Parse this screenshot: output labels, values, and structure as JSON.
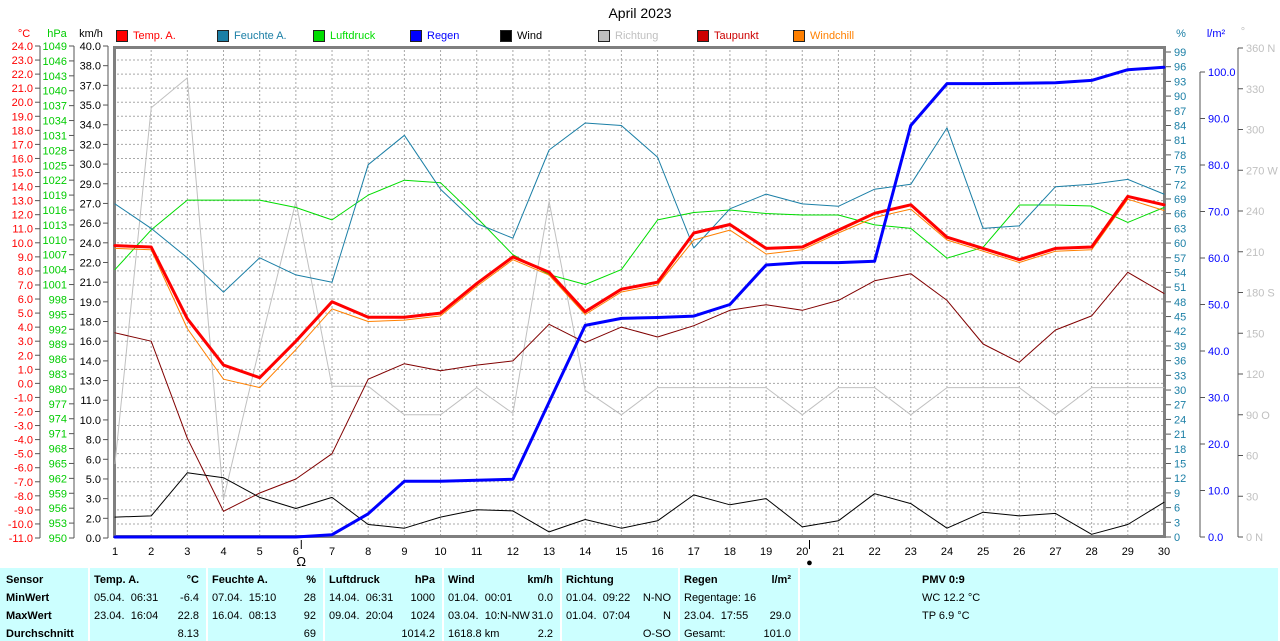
{
  "chart_data": {
    "type": "line",
    "title": "April 2023",
    "xlabel": "",
    "x": [
      1,
      2,
      3,
      4,
      5,
      6,
      7,
      8,
      9,
      10,
      11,
      12,
      13,
      14,
      15,
      16,
      17,
      18,
      19,
      20,
      21,
      22,
      23,
      24,
      25,
      26,
      27,
      28,
      29,
      30
    ],
    "series": [
      {
        "id": "richtung",
        "name": "Richtung",
        "axis": "dir",
        "color": "#C0C0C0",
        "width": 1,
        "values": [
          54,
          316,
          338,
          28,
          140,
          247,
          111,
          111,
          90,
          90,
          110,
          91,
          247,
          108,
          90,
          110,
          110,
          110,
          110,
          90,
          110,
          110,
          90,
          110,
          110,
          110,
          90,
          110,
          110,
          110
        ]
      },
      {
        "id": "luftdruck",
        "name": "Luftdruck",
        "axis": "hpa",
        "color": "#00DD00",
        "width": 1,
        "values": [
          1004,
          1012,
          1018,
          1018,
          1018,
          1016.5,
          1014,
          1019,
          1022,
          1021.5,
          1014.5,
          1007,
          1003,
          1001,
          1004,
          1014,
          1015.5,
          1016,
          1015.3,
          1015,
          1015,
          1013,
          1012.3,
          1006.3,
          1008.5,
          1017,
          1017,
          1016.8,
          1013.5,
          1016.5
        ]
      },
      {
        "id": "feuchte-a",
        "name": "Feuchte A.",
        "axis": "pct",
        "color": "#1B7FA6",
        "width": 1,
        "values": [
          68,
          63,
          57,
          50,
          57,
          53.5,
          52,
          76,
          82,
          71,
          64,
          61,
          79,
          84.5,
          84,
          77.5,
          59,
          67,
          70,
          68,
          67.5,
          71,
          72,
          83.5,
          63,
          63.5,
          71.5,
          72,
          73,
          70
        ]
      },
      {
        "id": "taupunkt",
        "name": "Taupunkt",
        "axis": "temp",
        "color": "#800000",
        "width": 1,
        "values": [
          3.6,
          3.0,
          -3.9,
          -9.1,
          -7.8,
          -6.8,
          -5.0,
          0.3,
          1.4,
          0.9,
          1.3,
          1.6,
          4.2,
          2.9,
          4.0,
          3.3,
          4.1,
          5.2,
          5.6,
          5.2,
          5.9,
          7.3,
          7.8,
          5.9,
          2.8,
          1.5,
          3.8,
          4.8,
          7.9,
          6.4
        ]
      },
      {
        "id": "windchill",
        "name": "Windchill",
        "axis": "temp",
        "color": "#FF8000",
        "width": 1,
        "values": [
          9.6,
          9.5,
          3.9,
          0.3,
          -0.3,
          2.4,
          5.3,
          4.4,
          4.5,
          4.8,
          6.9,
          8.8,
          7.7,
          4.9,
          6.5,
          7.0,
          10.2,
          10.9,
          9.2,
          9.5,
          10.7,
          11.8,
          12.4,
          10.2,
          9.4,
          8.6,
          9.4,
          9.5,
          13.1,
          12.3
        ]
      },
      {
        "id": "wind",
        "name": "Wind",
        "axis": "kmh",
        "color": "#000000",
        "width": 1,
        "values": [
          1.7,
          1.8,
          5.3,
          4.9,
          3.3,
          2.4,
          3.3,
          1.1,
          0.8,
          1.7,
          2.3,
          2.2,
          0.5,
          1.5,
          0.8,
          1.4,
          3.5,
          2.7,
          3.2,
          0.9,
          1.4,
          3.6,
          2.8,
          0.8,
          2.1,
          1.8,
          2.0,
          0.3,
          1.1,
          2.9
        ]
      },
      {
        "id": "temp-a",
        "name": "Temp. A.",
        "axis": "temp",
        "color": "#FF0000",
        "width": 3,
        "values": [
          9.8,
          9.7,
          4.6,
          1.3,
          0.4,
          3.0,
          5.8,
          4.7,
          4.7,
          5.0,
          7.1,
          9.0,
          7.9,
          5.1,
          6.7,
          7.2,
          10.7,
          11.3,
          9.6,
          9.7,
          10.9,
          12.1,
          12.7,
          10.4,
          9.6,
          8.8,
          9.6,
          9.7,
          13.3,
          12.7
        ]
      },
      {
        "id": "regen",
        "name": "Regen",
        "axis": "lm2",
        "color": "#0000FF",
        "width": 3,
        "values": [
          0,
          0,
          0,
          0,
          0,
          0,
          0.5,
          5,
          12,
          12,
          12.2,
          12.4,
          29,
          45.5,
          47,
          47.2,
          47.5,
          50,
          58.5,
          59,
          59,
          59.3,
          88.5,
          97.5,
          97.5,
          97.6,
          97.7,
          98.2,
          100.5,
          101
        ]
      }
    ]
  },
  "legend": {
    "items": [
      {
        "id": "temp-a",
        "label": "Temp. A.",
        "color": "#FF0000"
      },
      {
        "id": "feuchte-a",
        "label": "Feuchte A.",
        "color": "#1B7FA6"
      },
      {
        "id": "luftdruck",
        "label": "Luftdruck",
        "color": "#00DD00"
      },
      {
        "id": "regen",
        "label": "Regen",
        "color": "#0000FF"
      },
      {
        "id": "wind",
        "label": "Wind",
        "color": "#000000"
      },
      {
        "id": "richtung",
        "label": "Richtung",
        "color": "#C0C0C0"
      },
      {
        "id": "taupunkt",
        "label": "Taupunkt",
        "color": "#CC0000"
      },
      {
        "id": "windchill",
        "label": "Windchill",
        "color": "#FF8000"
      }
    ]
  },
  "axes": {
    "temp": {
      "header": "°C",
      "color": "#FF0000",
      "min": -11,
      "max": 24,
      "labels": [
        "24.0",
        "23.0",
        "22.0",
        "21.0",
        "20.0",
        "19.0",
        "18.0",
        "17.0",
        "16.0",
        "15.0",
        "14.0",
        "13.0",
        "12.0",
        "11.0",
        "10.0",
        "9.0",
        "8.0",
        "7.0",
        "6.0",
        "5.0",
        "4.0",
        "3.0",
        "2.0",
        "1.0",
        "0.0",
        "-1.0",
        "-2.0",
        "-3.0",
        "-4.0",
        "-5.0",
        "-6.0",
        "-7.0",
        "-8.0",
        "-9.0",
        "-10.0",
        "-11.0"
      ]
    },
    "hpa": {
      "header": "hPa",
      "color": "#00CC00",
      "min": 950,
      "max": 1049,
      "labels": [
        "1049",
        "1046",
        "1043",
        "1040",
        "1037",
        "1034",
        "1031",
        "1028",
        "1025",
        "1022",
        "1019",
        "1016",
        "1013",
        "1010",
        "1007",
        "1004",
        "1001",
        "998",
        "995",
        "992",
        "989",
        "986",
        "983",
        "980",
        "977",
        "974",
        "971",
        "968",
        "965",
        "962",
        "959",
        "956",
        "953",
        "950"
      ]
    },
    "kmh": {
      "header": "km/h",
      "color": "#000000",
      "min": 0,
      "max": 40,
      "labels": [
        "40.0",
        "38.0",
        "37.0",
        "35.0",
        "34.0",
        "32.0",
        "30.0",
        "29.0",
        "27.0",
        "26.0",
        "24.0",
        "22.0",
        "21.0",
        "19.0",
        "18.0",
        "16.0",
        "14.0",
        "13.0",
        "11.0",
        "10.0",
        "8.0",
        "6.0",
        "5.0",
        "3.0",
        "2.0",
        "0.0"
      ]
    },
    "pct": {
      "header": "%",
      "color": "#1B7FA6",
      "min": 0,
      "max": 99,
      "labels": [
        "99",
        "96",
        "93",
        "90",
        "87",
        "84",
        "81",
        "78",
        "75",
        "72",
        "69",
        "66",
        "63",
        "60",
        "57",
        "54",
        "51",
        "48",
        "45",
        "42",
        "39",
        "36",
        "33",
        "30",
        "27",
        "24",
        "21",
        "18",
        "15",
        "12",
        "9",
        "6",
        "3",
        "0"
      ]
    },
    "lm2": {
      "header": "l/m²",
      "color": "#0000FF",
      "min": 0,
      "max": 100,
      "labels": [
        "100.0",
        "90.0",
        "80.0",
        "70.0",
        "60.0",
        "50.0",
        "40.0",
        "30.0",
        "20.0",
        "10.0",
        "0.0"
      ]
    },
    "dir": {
      "header": "°",
      "color": "#C0C0C0",
      "min": 0,
      "max": 360,
      "labels": [
        "360 N",
        "330",
        "300",
        "270 W",
        "240",
        "210",
        "180 S",
        "150",
        "120",
        "90 O",
        "60",
        "30",
        "0 N"
      ]
    }
  },
  "x_axis": {
    "days": [
      "1",
      "2",
      "3",
      "4",
      "5",
      "6",
      "7",
      "8",
      "9",
      "10",
      "11",
      "12",
      "13",
      "14",
      "15",
      "16",
      "17",
      "18",
      "19",
      "20",
      "21",
      "22",
      "23",
      "24",
      "25",
      "26",
      "27",
      "28",
      "29",
      "30"
    ],
    "moon_markers": [
      {
        "symbol": "Ω",
        "name": "full-moon-marker",
        "day": 6.15
      },
      {
        "symbol": "●",
        "name": "new-moon-marker",
        "day": 20.2
      }
    ]
  },
  "summary_table": {
    "columns": [
      {
        "id": "sensor",
        "cells": [
          {
            "l": "Sensor",
            "r": ""
          },
          {
            "l": "MinWert",
            "r": ""
          },
          {
            "l": "MaxWert",
            "r": ""
          },
          {
            "l": "Durchschnitt",
            "r": ""
          }
        ]
      },
      {
        "id": "temp",
        "cells": [
          {
            "l": "Temp. A.",
            "r": "°C"
          },
          {
            "l": "05.04.  06:31",
            "r": "-6.4"
          },
          {
            "l": "23.04.  16:04",
            "r": "22.8"
          },
          {
            "l": "",
            "r": "8.13"
          }
        ]
      },
      {
        "id": "feuchte",
        "cells": [
          {
            "l": "Feuchte A.",
            "r": "%"
          },
          {
            "l": "07.04.  15:10",
            "r": "28"
          },
          {
            "l": "16.04.  08:13",
            "r": "92"
          },
          {
            "l": "",
            "r": "69"
          }
        ]
      },
      {
        "id": "luftdruck",
        "cells": [
          {
            "l": "Luftdruck",
            "r": "hPa"
          },
          {
            "l": "14.04.  06:31",
            "r": "1000"
          },
          {
            "l": "09.04.  20:04",
            "r": "1024"
          },
          {
            "l": "",
            "r": "1014.2"
          }
        ]
      },
      {
        "id": "wind",
        "cells": [
          {
            "l": "Wind",
            "r": "km/h"
          },
          {
            "l": "01.04.  00:01",
            "r": "0.0"
          },
          {
            "l": "03.04.  10:N-NW",
            "r": "31.0"
          },
          {
            "l": "1618.8 km",
            "r": "2.2"
          }
        ]
      },
      {
        "id": "richtung",
        "cells": [
          {
            "l": "Richtung",
            "r": ""
          },
          {
            "l": "01.04.  09:22",
            "r": "N-NO"
          },
          {
            "l": "01.04.  07:04",
            "r": "N"
          },
          {
            "l": "",
            "r": "O-SO"
          }
        ]
      },
      {
        "id": "regen",
        "cells": [
          {
            "l": "Regen",
            "r": "l/m²"
          },
          {
            "l": "Regentage: 16",
            "r": ""
          },
          {
            "l": "23.04.  17:55",
            "r": "29.0"
          },
          {
            "l": "Gesamt:",
            "r": "101.0"
          }
        ]
      },
      {
        "id": "pmv",
        "cells": [
          {
            "l": "PMV 0:9",
            "r": ""
          },
          {
            "l": "WC 12.2 °C",
            "r": ""
          },
          {
            "l": "TP 6.9 °C",
            "r": ""
          },
          {
            "l": "",
            "r": ""
          }
        ]
      }
    ]
  }
}
